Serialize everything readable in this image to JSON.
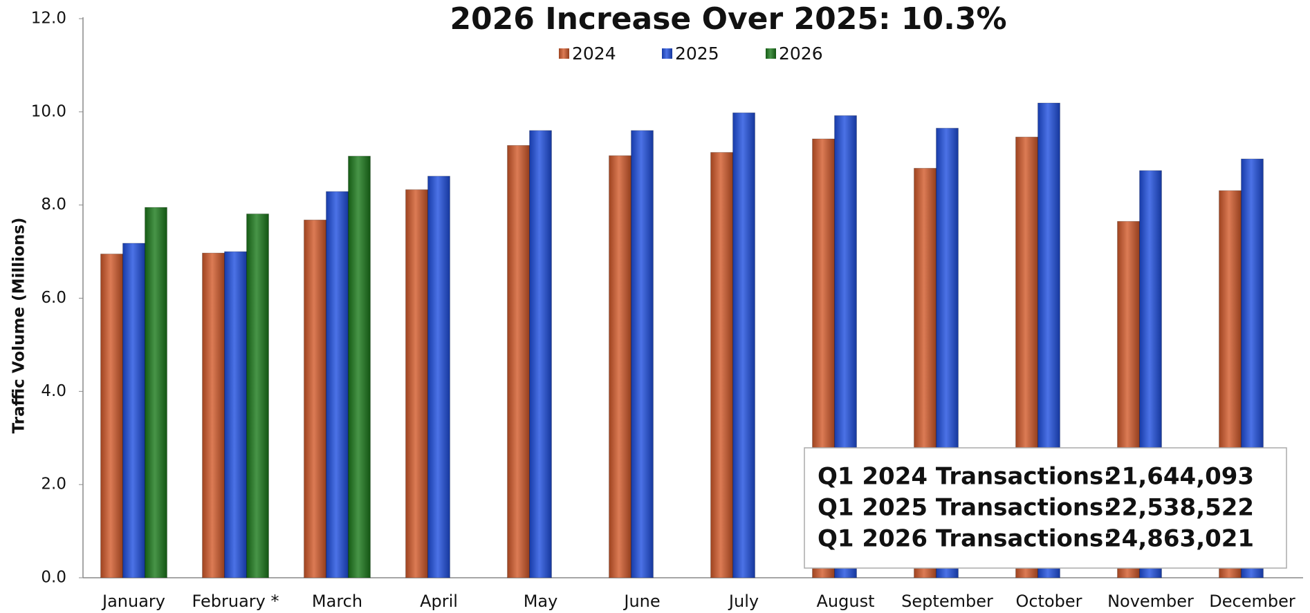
{
  "chart_data": {
    "type": "bar",
    "title": "2026 Increase Over 2025: 10.3%",
    "y_label": "Traffic Volume (Millions)",
    "categories": [
      "January",
      "February *",
      "March",
      "April",
      "May",
      "June",
      "July",
      "August",
      "September",
      "October",
      "November",
      "December"
    ],
    "series": [
      {
        "name": "2024",
        "color": "#d35a2a",
        "values": [
          6.95,
          6.97,
          7.68,
          8.33,
          9.28,
          9.06,
          9.13,
          9.42,
          8.79,
          9.46,
          7.65,
          8.31
        ]
      },
      {
        "name": "2025",
        "color": "#1f4fe0",
        "values": [
          7.18,
          7.0,
          8.29,
          8.62,
          9.6,
          9.6,
          9.98,
          9.92,
          9.65,
          10.19,
          8.74,
          8.99
        ]
      },
      {
        "name": "2026",
        "color": "#1a7a1a",
        "values": [
          7.95,
          7.81,
          9.05,
          null,
          null,
          null,
          null,
          null,
          null,
          null,
          null,
          null
        ]
      }
    ],
    "ylim": [
      0,
      12
    ],
    "yticks": [
      {
        "value": 0,
        "label": "0.0"
      },
      {
        "value": 2,
        "label": "2.0"
      },
      {
        "value": 4,
        "label": "4.0"
      },
      {
        "value": 6,
        "label": "6.0"
      },
      {
        "value": 8,
        "label": "8.0"
      },
      {
        "value": 10,
        "label": "10.0"
      },
      {
        "value": 12,
        "label": "12.0"
      }
    ],
    "grid": false,
    "legend": "top",
    "annotation_box": [
      {
        "label": "Q1 2024 Transactions:",
        "value": "21,644,093"
      },
      {
        "label": "Q1 2025 Transactions:",
        "value": "22,538,522"
      },
      {
        "label": "Q1 2026 Transactions:",
        "value": "24,863,021"
      }
    ]
  }
}
